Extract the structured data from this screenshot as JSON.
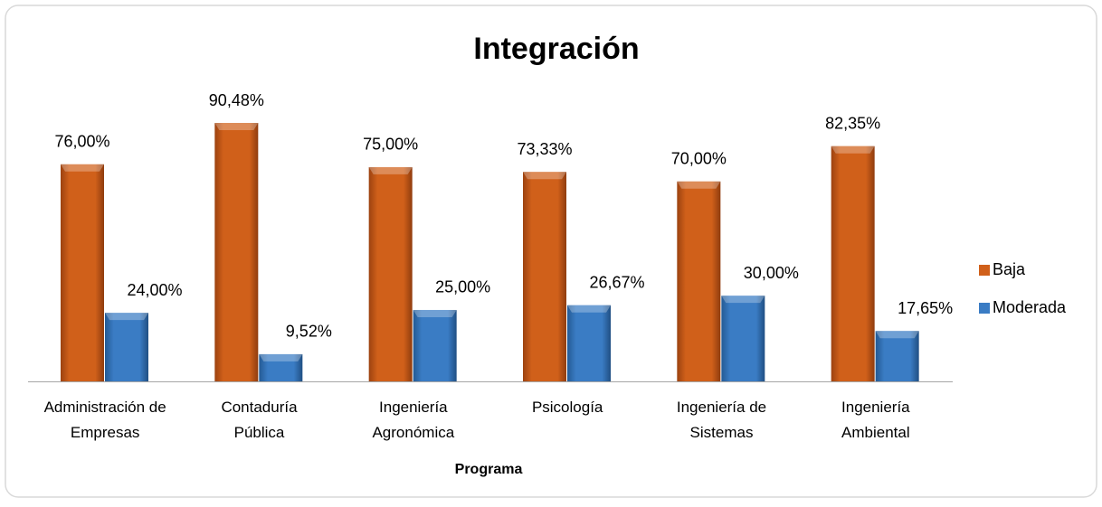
{
  "chart_data": {
    "type": "bar",
    "title": "Integración",
    "x_label": "Programa",
    "categories": [
      [
        "Administración de",
        "Empresas"
      ],
      [
        "Contaduría",
        "Pública"
      ],
      [
        "Ingeniería",
        "Agronómica"
      ],
      [
        "Psicología"
      ],
      [
        "Ingeniería de",
        "Sistemas"
      ],
      [
        "Ingeniería",
        "Ambiental"
      ]
    ],
    "series": [
      {
        "name": "Baja",
        "color": "#d0601a",
        "values": [
          76.0,
          90.48,
          75.0,
          73.33,
          70.0,
          82.35
        ],
        "value_labels": [
          "76,00%",
          "90,48%",
          "75,00%",
          "73,33%",
          "70,00%",
          "82,35%"
        ]
      },
      {
        "name": "Moderada",
        "color": "#3a7cc4",
        "values": [
          24.0,
          9.52,
          25.0,
          26.67,
          30.0,
          17.65
        ],
        "value_labels": [
          "24,00%",
          "9,52%",
          "25,00%",
          "26,67%",
          "30,00%",
          "17,65%"
        ]
      }
    ],
    "legend": "right"
  }
}
